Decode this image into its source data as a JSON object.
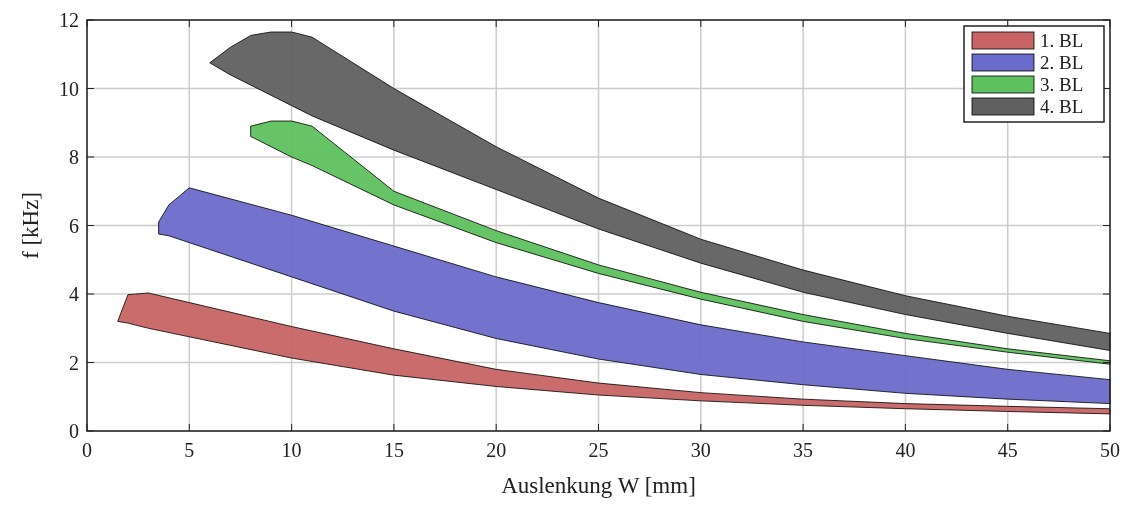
{
  "chart_data": {
    "type": "area",
    "xlabel": "Auslenkung W [mm]",
    "ylabel": "f [kHz]",
    "xlim": [
      0,
      50
    ],
    "ylim": [
      0,
      12
    ],
    "xticks": [
      0,
      5,
      10,
      15,
      20,
      25,
      30,
      35,
      40,
      45,
      50
    ],
    "yticks": [
      0,
      2,
      4,
      6,
      8,
      10,
      12
    ],
    "grid": true,
    "legend": "top right",
    "series": [
      {
        "name": "1. BL",
        "color": "#c86464",
        "x": [
          1.5,
          2,
          3,
          5,
          10,
          15,
          20,
          25,
          30,
          35,
          40,
          45,
          50,
          50,
          45,
          40,
          35,
          30,
          25,
          20,
          15,
          10,
          5,
          3,
          2
        ],
        "values": [
          3.2,
          3.98,
          4.03,
          3.75,
          3.05,
          2.4,
          1.8,
          1.4,
          1.12,
          0.93,
          0.8,
          0.72,
          0.65,
          0.5,
          0.57,
          0.65,
          0.75,
          0.88,
          1.05,
          1.3,
          1.63,
          2.13,
          2.75,
          3.0,
          3.15
        ]
      },
      {
        "name": "2. BL",
        "color": "#6b6bcb",
        "x": [
          3.5,
          4,
          5,
          10,
          15,
          20,
          25,
          30,
          35,
          40,
          45,
          50,
          50,
          45,
          40,
          35,
          30,
          25,
          20,
          15,
          10,
          5,
          4,
          3.5
        ],
        "values": [
          6.1,
          6.6,
          7.1,
          6.3,
          5.4,
          4.5,
          3.75,
          3.1,
          2.6,
          2.2,
          1.8,
          1.5,
          0.8,
          0.93,
          1.1,
          1.35,
          1.65,
          2.1,
          2.7,
          3.5,
          4.5,
          5.5,
          5.7,
          5.75
        ]
      },
      {
        "name": "3. BL",
        "color": "#5ec05e",
        "x": [
          8,
          9,
          10,
          11,
          15,
          20,
          25,
          30,
          35,
          40,
          45,
          50,
          50,
          45,
          40,
          35,
          30,
          25,
          20,
          15,
          11,
          10,
          9,
          8
        ],
        "values": [
          8.9,
          9.05,
          9.05,
          8.9,
          7.0,
          5.85,
          4.85,
          4.05,
          3.4,
          2.85,
          2.4,
          2.05,
          1.95,
          2.3,
          2.7,
          3.2,
          3.85,
          4.6,
          5.5,
          6.6,
          7.75,
          8.0,
          8.3,
          8.6
        ]
      },
      {
        "name": "4. BL",
        "color": "#606060",
        "x": [
          6,
          7,
          8,
          9,
          10,
          11,
          15,
          20,
          25,
          30,
          35,
          40,
          45,
          50,
          50,
          45,
          40,
          35,
          30,
          25,
          20,
          15,
          11,
          10,
          9,
          8,
          7
        ],
        "values": [
          10.75,
          11.2,
          11.55,
          11.65,
          11.65,
          11.5,
          10.0,
          8.3,
          6.8,
          5.6,
          4.7,
          3.95,
          3.35,
          2.85,
          2.35,
          2.85,
          3.4,
          4.05,
          4.9,
          5.9,
          7.05,
          8.2,
          9.2,
          9.5,
          9.8,
          10.1,
          10.4
        ]
      }
    ]
  }
}
